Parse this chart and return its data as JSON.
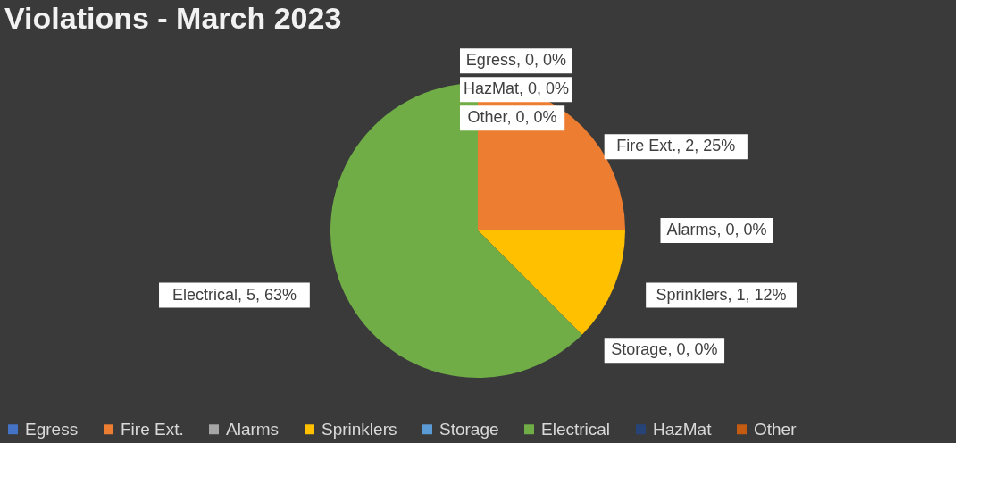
{
  "chart_data": {
    "type": "pie",
    "title": "Violations - March 2023",
    "categories": [
      "Egress",
      "Fire Ext.",
      "Alarms",
      "Sprinklers",
      "Storage",
      "Electrical",
      "HazMat",
      "Other"
    ],
    "values": [
      0,
      2,
      0,
      1,
      0,
      5,
      0,
      0
    ],
    "colors": [
      "#4472c4",
      "#ed7d31",
      "#a5a5a5",
      "#ffc000",
      "#5b9bd5",
      "#70ad47",
      "#264478",
      "#c55a11"
    ],
    "value_labels": [
      "Egress, 0, 0%",
      "Fire Ext., 2, 25%",
      "Alarms, 0, 0%",
      "Sprinklers, 1, 12%",
      "Storage, 0, 0%",
      "Electrical, 5, 63%",
      "HazMat, 0, 0%",
      "Other, 0, 0%"
    ],
    "legend": "bottom"
  }
}
